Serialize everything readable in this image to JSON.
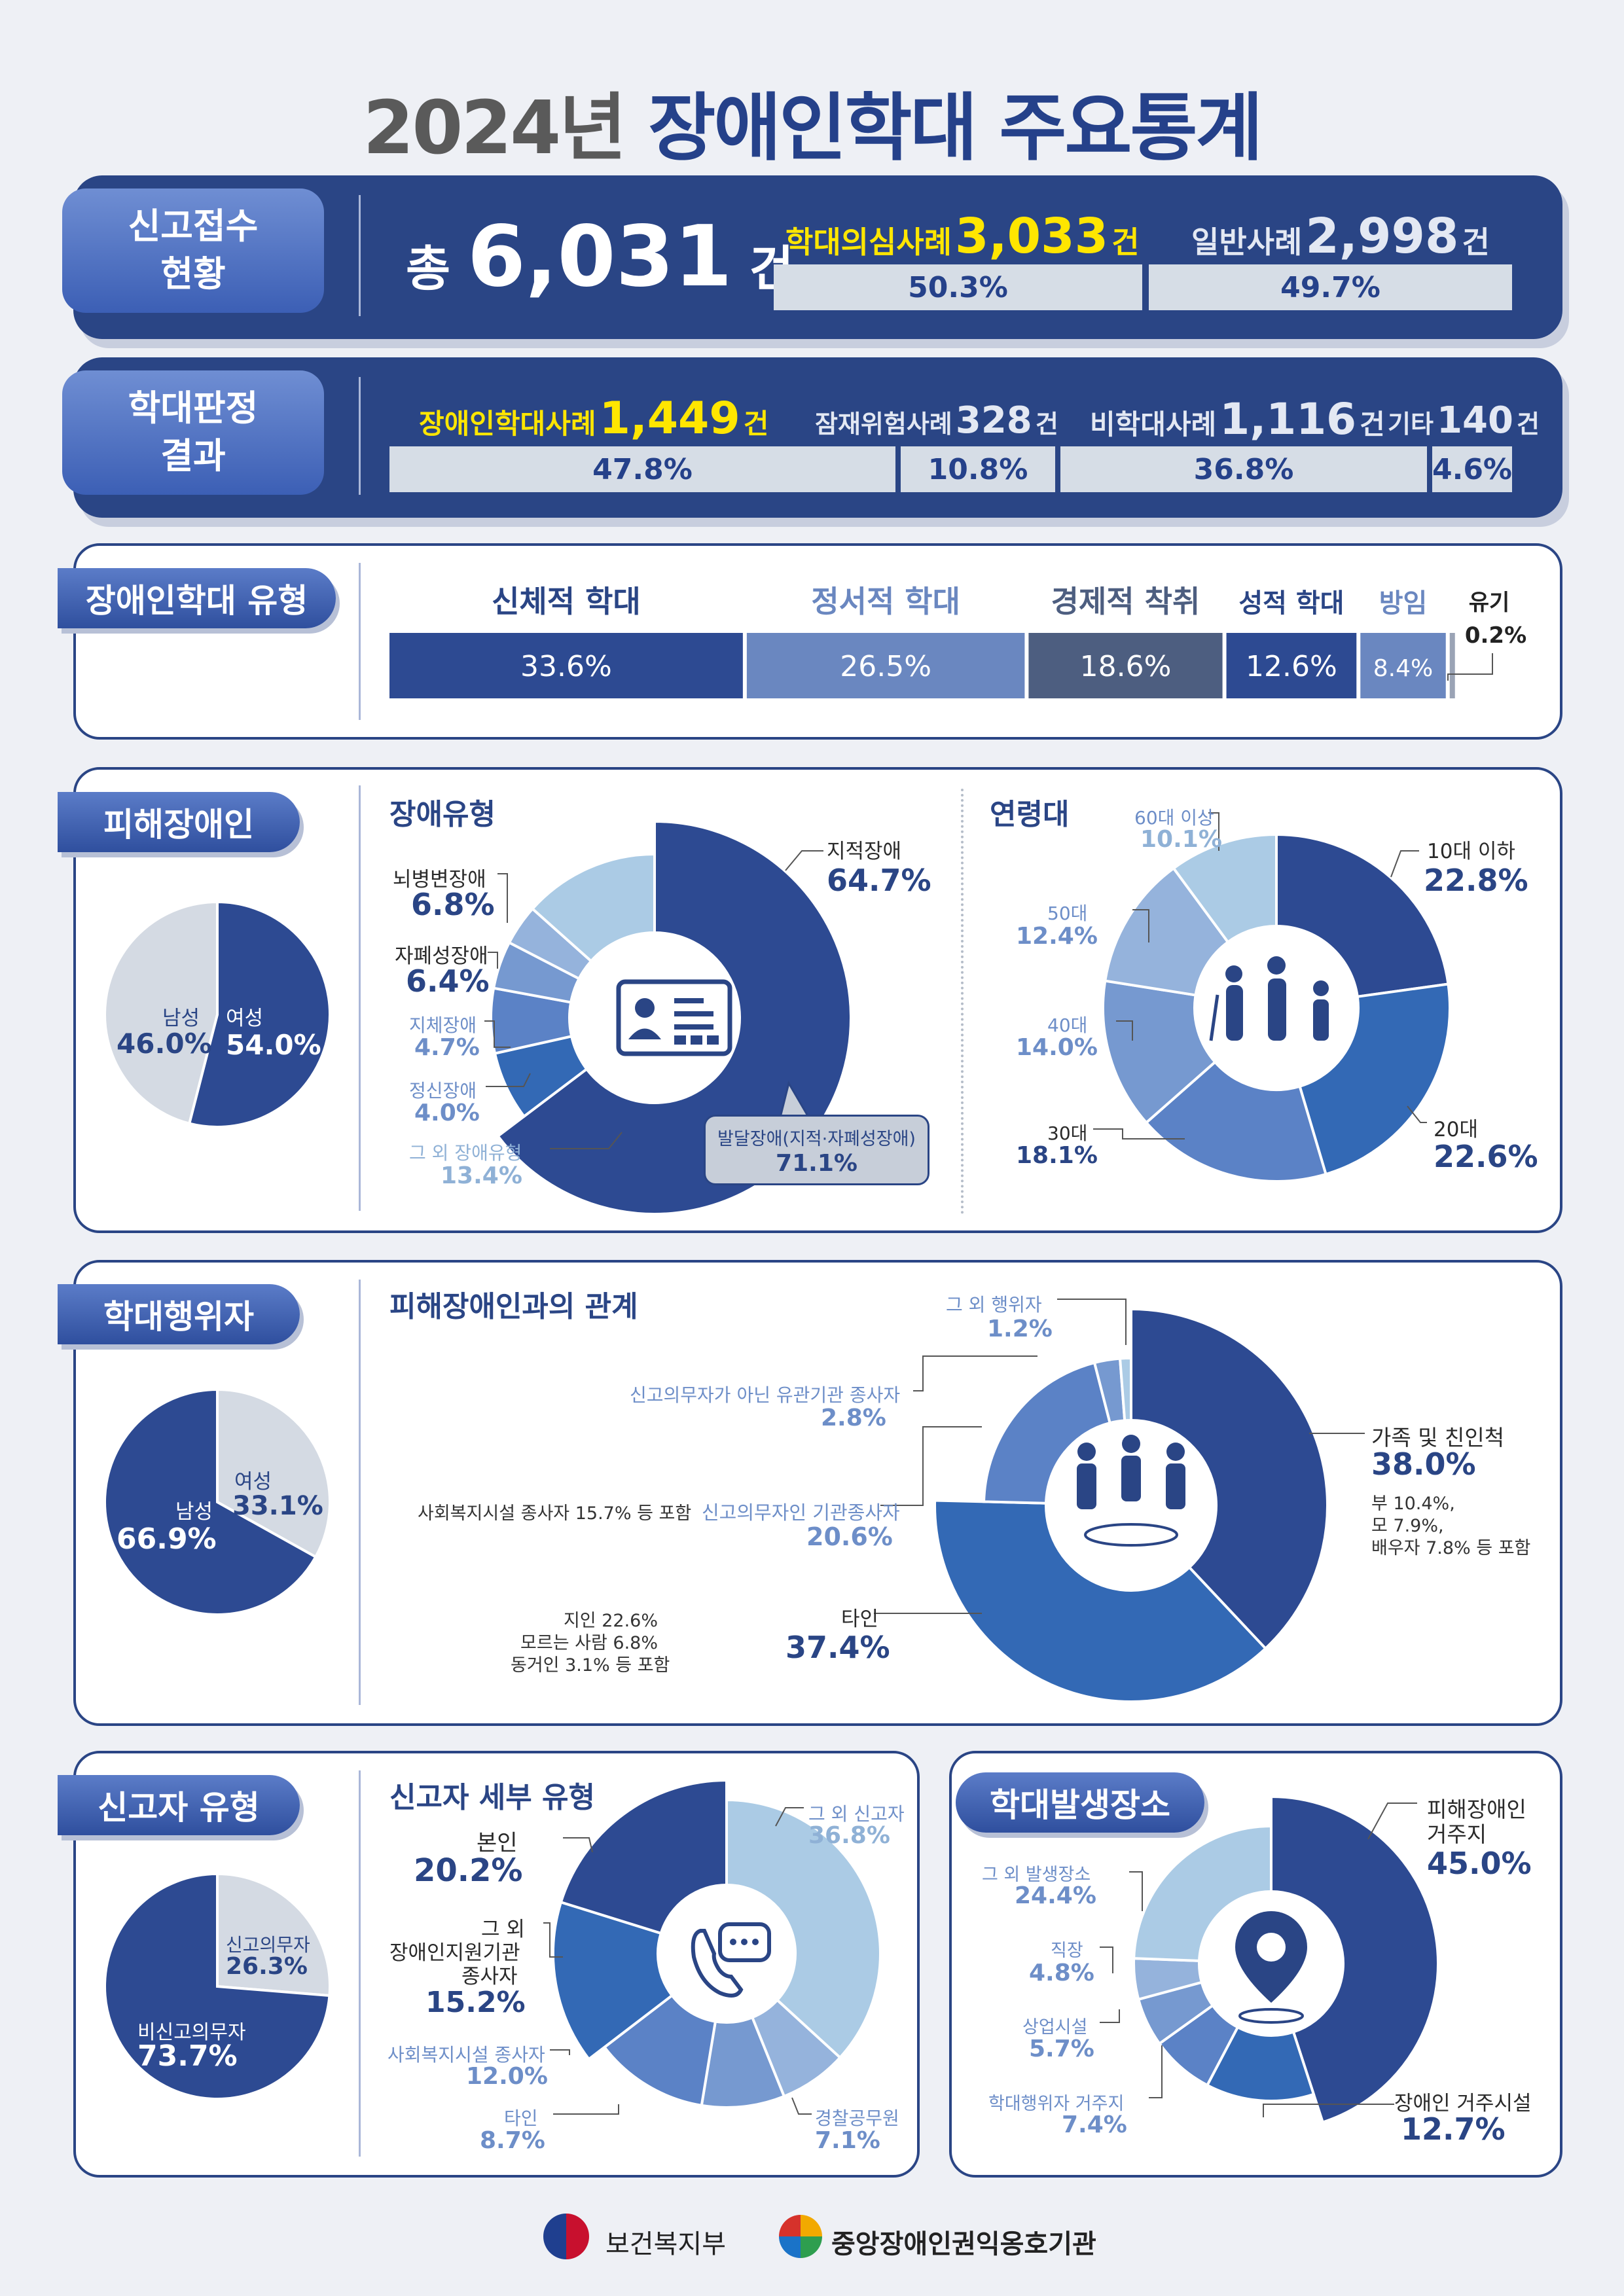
{
  "title": {
    "year": "2024년",
    "main": "장애인학대 주요통계"
  },
  "reports": {
    "label": "신고접수 현황",
    "total_prefix": "총",
    "total": "6,031",
    "total_unit": "건",
    "suspect_label": "학대의심사례",
    "suspect_count": "3,033",
    "unit": "건",
    "suspect_pct": "50.3%",
    "general_label": "일반사례",
    "general_count": "2,998",
    "general_pct": "49.7%"
  },
  "judgment": {
    "label": "학대판정 결과",
    "abuse_label": "장애인학대사례",
    "abuse_count": "1,449",
    "abuse_pct": "47.8%",
    "risk_label": "잠재위험사례",
    "risk_count": "328",
    "risk_pct": "10.8%",
    "nonabuse_label": "비학대사례",
    "nonabuse_count": "1,116",
    "nonabuse_pct": "36.8%",
    "other_label": "기타",
    "other_count": "140",
    "other_pct": "4.6%",
    "unit": "건"
  },
  "abuse_types": {
    "label": "장애인학대 유형",
    "items": [
      {
        "name": "신체적 학대",
        "pct": "33.6%",
        "color": "#2d4a92"
      },
      {
        "name": "정서적 학대",
        "pct": "26.5%",
        "color": "#6a87c0"
      },
      {
        "name": "경제적 착취",
        "pct": "18.6%",
        "color": "#4d5e80"
      },
      {
        "name": "성적 학대",
        "pct": "12.6%",
        "color": "#2d4a92"
      },
      {
        "name": "방임",
        "pct": "8.4%",
        "color": "#6a87c0"
      },
      {
        "name": "유기",
        "pct": "0.2%",
        "color": "#9aa3b5"
      }
    ]
  },
  "victims": {
    "label": "피해장애인",
    "gender": {
      "male_label": "남성",
      "male_pct": "46.0%",
      "female_label": "여성",
      "female_pct": "54.0%"
    },
    "disability_title": "장애유형",
    "disability": [
      {
        "name": "지적장애",
        "pct": "64.7%"
      },
      {
        "name": "뇌병변장애",
        "pct": "6.8%"
      },
      {
        "name": "자폐성장애",
        "pct": "6.4%"
      },
      {
        "name": "지체장애",
        "pct": "4.7%"
      },
      {
        "name": "정신장애",
        "pct": "4.0%"
      },
      {
        "name": "그 외 장애유형",
        "pct": "13.4%"
      }
    ],
    "dev_label": "발달장애(지적·자폐성장애)",
    "dev_pct": "71.1%",
    "age_title": "연령대",
    "age": [
      {
        "name": "10대 이하",
        "pct": "22.8%"
      },
      {
        "name": "20대",
        "pct": "22.6%"
      },
      {
        "name": "30대",
        "pct": "18.1%"
      },
      {
        "name": "40대",
        "pct": "14.0%"
      },
      {
        "name": "50대",
        "pct": "12.4%"
      },
      {
        "name": "60대 이상",
        "pct": "10.1%"
      }
    ]
  },
  "perpetrators": {
    "label": "학대행위자",
    "gender": {
      "male_label": "남성",
      "male_pct": "66.9%",
      "female_label": "여성",
      "female_pct": "33.1%"
    },
    "relation_title": "피해장애인과의 관계",
    "family_label": "가족 및 친인척",
    "family_pct": "38.0%",
    "family_note": [
      "부 10.4%,",
      "모 7.9%,",
      "배우자 7.8% 등 포함"
    ],
    "others_label": "타인",
    "others_pct": "37.4%",
    "others_note": [
      "지인 22.6%",
      "모르는 사람 6.8%",
      "동거인 3.1% 등 포함"
    ],
    "mandatory_label": "신고의무자인 기관종사자",
    "mandatory_pct": "20.6%",
    "mandatory_note": "사회복지시설 종사자 15.7% 등 포함",
    "nonmand_label": "신고의무자가 아닌 유관기관 종사자",
    "nonmand_pct": "2.8%",
    "etc_label": "그 외 행위자",
    "etc_pct": "1.2%"
  },
  "reporters": {
    "label": "신고자 유형",
    "mandatory_label": "신고의무자",
    "mandatory_pct": "26.3%",
    "nonmand_label": "비신고의무자",
    "nonmand_pct": "73.7%",
    "detail_title": "신고자 세부 유형",
    "details": [
      {
        "name": "그 외 신고자",
        "pct": "36.8%"
      },
      {
        "name": "경찰공무원",
        "pct": "7.1%"
      },
      {
        "name": "타인",
        "pct": "8.7%"
      },
      {
        "name": "사회복지시설 종사자",
        "pct": "12.0%"
      },
      {
        "name": "그 외 장애인지원기관 종사자",
        "pct": "15.2%"
      },
      {
        "name": "본인",
        "pct": "20.2%"
      }
    ],
    "etc_inst_lines": [
      "그 외",
      "장애인지원기관",
      "종사자"
    ]
  },
  "places": {
    "label": "학대발생장소",
    "home_label_lines": [
      "피해장애인",
      "거주지"
    ],
    "home_pct": "45.0%",
    "residence_label": "장애인 거주시설",
    "residence_pct": "12.7%",
    "perp_home_label": "학대행위자 거주지",
    "perp_home_pct": "7.4%",
    "commercial_label": "상업시설",
    "commercial_pct": "5.7%",
    "work_label": "직장",
    "work_pct": "4.8%",
    "etc_label": "그 외 발생장소",
    "etc_pct": "24.4%"
  },
  "footer": {
    "ministry": "보건복지부",
    "agency": "중앙장애인권익옹호기관"
  },
  "chart_data": [
    {
      "type": "bar",
      "title": "신고접수 현황",
      "categories": [
        "학대의심사례",
        "일반사례"
      ],
      "values": [
        3033,
        2998
      ],
      "percent": [
        50.3,
        49.7
      ]
    },
    {
      "type": "bar",
      "title": "학대판정 결과",
      "categories": [
        "장애인학대사례",
        "잠재위험사례",
        "비학대사례",
        "기타"
      ],
      "values": [
        1449,
        328,
        1116,
        140
      ],
      "percent": [
        47.8,
        10.8,
        36.8,
        4.6
      ]
    },
    {
      "type": "bar",
      "title": "장애인학대 유형",
      "categories": [
        "신체적 학대",
        "정서적 학대",
        "경제적 착취",
        "성적 학대",
        "방임",
        "유기"
      ],
      "values": [
        33.6,
        26.5,
        18.6,
        12.6,
        8.4,
        0.2
      ]
    },
    {
      "type": "pie",
      "categories": [
        "여성",
        "남성"
      ],
      "values": [
        54.0,
        46.0
      ],
      "colors": [
        "#2d4a92",
        "#d4dae3"
      ]
    },
    {
      "type": "pie",
      "title": "장애유형",
      "categories": [
        "지적장애",
        "뇌병변장애",
        "자폐성장애",
        "지체장애",
        "정신장애",
        "그 외 장애유형"
      ],
      "values": [
        64.7,
        6.8,
        6.4,
        4.7,
        4.0,
        13.4
      ],
      "colors": [
        "#2d4a92",
        "#3369b5",
        "#5b82c6",
        "#7699d0",
        "#95b3dc",
        "#abcbe5"
      ]
    },
    {
      "type": "pie",
      "title": "연령대",
      "categories": [
        "10대 이하",
        "20대",
        "30대",
        "40대",
        "50대",
        "60대 이상"
      ],
      "values": [
        22.8,
        22.6,
        18.1,
        14.0,
        12.4,
        10.1
      ],
      "colors": [
        "#2d4a92",
        "#3369b5",
        "#5b82c6",
        "#7699d0",
        "#95b3dc",
        "#abcbe5"
      ]
    },
    {
      "type": "pie",
      "categories": [
        "여성",
        "남성"
      ],
      "values": [
        33.1,
        66.9
      ],
      "colors": [
        "#d4dae3",
        "#2d4a92"
      ]
    },
    {
      "type": "pie",
      "title": "피해장애인과의 관계",
      "categories": [
        "가족 및 친인척",
        "타인",
        "신고의무자인 기관종사자",
        "신고의무자가 아닌 유관기관 종사자",
        "그 외 행위자"
      ],
      "values": [
        38.0,
        37.4,
        20.6,
        2.8,
        1.2
      ],
      "colors": [
        "#2d4a92",
        "#3369b5",
        "#5b82c6",
        "#7699d0",
        "#abcbe5"
      ]
    },
    {
      "type": "pie",
      "categories": [
        "신고의무자",
        "비신고의무자"
      ],
      "values": [
        26.3,
        73.7
      ],
      "colors": [
        "#d4dae3",
        "#2d4a92"
      ]
    },
    {
      "type": "pie",
      "title": "신고자 세부 유형",
      "categories": [
        "그 외 신고자",
        "경찰공무원",
        "타인",
        "사회복지시설 종사자",
        "그 외 장애인지원기관 종사자",
        "본인"
      ],
      "values": [
        36.8,
        7.1,
        8.7,
        12.0,
        15.2,
        20.2
      ],
      "colors": [
        "#abcbe5",
        "#95b3dc",
        "#7699d0",
        "#5b82c6",
        "#3369b5",
        "#2d4a92"
      ]
    },
    {
      "type": "pie",
      "title": "학대발생장소",
      "categories": [
        "피해장애인 거주지",
        "장애인 거주시설",
        "학대행위자 거주지",
        "상업시설",
        "직장",
        "그 외 발생장소"
      ],
      "values": [
        45.0,
        12.7,
        7.4,
        5.7,
        4.8,
        24.4
      ],
      "colors": [
        "#2d4a92",
        "#3369b5",
        "#5b82c6",
        "#7699d0",
        "#95b3dc",
        "#abcbe5"
      ]
    }
  ]
}
